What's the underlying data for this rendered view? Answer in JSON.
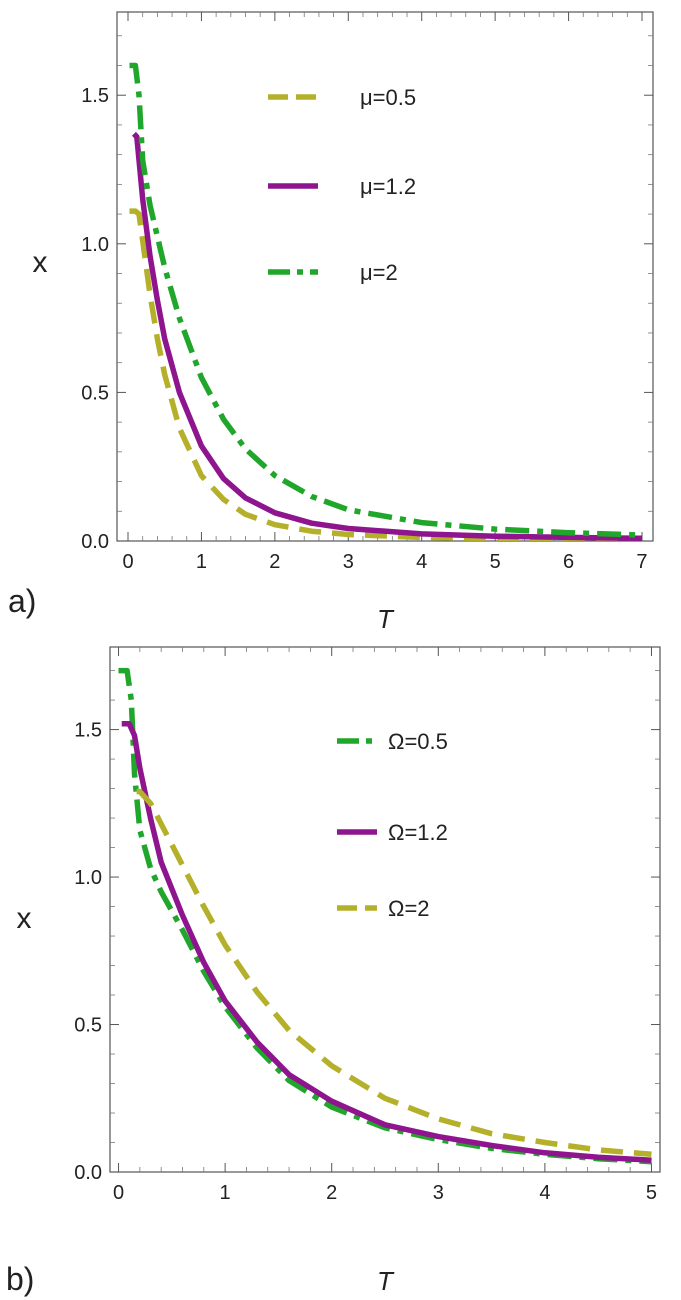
{
  "chart_data": [
    {
      "type": "line",
      "panel_label": "a)",
      "xlabel": "T",
      "ylabel": "x",
      "xlim": [
        -0.15,
        7.15
      ],
      "ylim": [
        0.0,
        1.78
      ],
      "xticks": [
        "0",
        "1",
        "2",
        "3",
        "4",
        "5",
        "6",
        "7"
      ],
      "yticks": [
        "0.0",
        "0.5",
        "1.0",
        "1.5"
      ],
      "grid": false,
      "legend_position": "top-right",
      "series": [
        {
          "name": "μ=0.5",
          "color": "#B5B02A",
          "style": "dashed",
          "points": [
            [
              0.02,
              1.11
            ],
            [
              0.1,
              1.11
            ],
            [
              0.15,
              1.1
            ],
            [
              0.2,
              1.01
            ],
            [
              0.3,
              0.83
            ],
            [
              0.4,
              0.68
            ],
            [
              0.5,
              0.56
            ],
            [
              0.7,
              0.38
            ],
            [
              1.0,
              0.22
            ],
            [
              1.3,
              0.14
            ],
            [
              1.6,
              0.09
            ],
            [
              2.0,
              0.055
            ],
            [
              2.5,
              0.033
            ],
            [
              3.0,
              0.022
            ],
            [
              4.0,
              0.012
            ],
            [
              5.0,
              0.008
            ],
            [
              6.0,
              0.006
            ],
            [
              7.0,
              0.004
            ]
          ]
        },
        {
          "name": "μ=1.2",
          "color": "#8E158E",
          "style": "solid",
          "points": [
            [
              0.08,
              1.37
            ],
            [
              0.12,
              1.36
            ],
            [
              0.2,
              1.15
            ],
            [
              0.3,
              0.96
            ],
            [
              0.4,
              0.81
            ],
            [
              0.5,
              0.68
            ],
            [
              0.7,
              0.5
            ],
            [
              1.0,
              0.32
            ],
            [
              1.3,
              0.21
            ],
            [
              1.6,
              0.145
            ],
            [
              2.0,
              0.095
            ],
            [
              2.5,
              0.06
            ],
            [
              3.0,
              0.042
            ],
            [
              4.0,
              0.024
            ],
            [
              5.0,
              0.016
            ],
            [
              6.0,
              0.012
            ],
            [
              7.0,
              0.009
            ]
          ]
        },
        {
          "name": "μ=2",
          "color": "#20A62A",
          "style": "dashdot",
          "points": [
            [
              0.02,
              1.6
            ],
            [
              0.1,
              1.6
            ],
            [
              0.15,
              1.5
            ],
            [
              0.2,
              1.28
            ],
            [
              0.3,
              1.13
            ],
            [
              0.5,
              0.92
            ],
            [
              0.7,
              0.75
            ],
            [
              1.0,
              0.55
            ],
            [
              1.3,
              0.41
            ],
            [
              1.6,
              0.31
            ],
            [
              2.0,
              0.22
            ],
            [
              2.5,
              0.15
            ],
            [
              3.0,
              0.105
            ],
            [
              4.0,
              0.062
            ],
            [
              5.0,
              0.04
            ],
            [
              6.0,
              0.028
            ],
            [
              7.0,
              0.02
            ]
          ]
        }
      ]
    },
    {
      "type": "line",
      "panel_label": "b)",
      "xlabel": "T",
      "ylabel": "x",
      "xlim": [
        -0.08,
        5.08
      ],
      "ylim": [
        0.0,
        1.78
      ],
      "xticks": [
        "0",
        "1",
        "2",
        "3",
        "4",
        "5"
      ],
      "yticks": [
        "0.0",
        "0.5",
        "1.0",
        "1.5"
      ],
      "grid": false,
      "legend_position": "top-right",
      "series": [
        {
          "name": "Ω=0.5",
          "color": "#20A62A",
          "style": "dashdot",
          "points": [
            [
              0.0,
              1.7
            ],
            [
              0.08,
              1.7
            ],
            [
              0.12,
              1.6
            ],
            [
              0.15,
              1.35
            ],
            [
              0.2,
              1.16
            ],
            [
              0.3,
              1.03
            ],
            [
              0.4,
              0.95
            ],
            [
              0.6,
              0.82
            ],
            [
              0.8,
              0.68
            ],
            [
              1.0,
              0.56
            ],
            [
              1.3,
              0.42
            ],
            [
              1.6,
              0.31
            ],
            [
              2.0,
              0.22
            ],
            [
              2.5,
              0.15
            ],
            [
              3.0,
              0.11
            ],
            [
              3.5,
              0.08
            ],
            [
              4.0,
              0.06
            ],
            [
              4.5,
              0.045
            ],
            [
              5.0,
              0.035
            ]
          ]
        },
        {
          "name": "Ω=1.2",
          "color": "#8E158E",
          "style": "solid",
          "points": [
            [
              0.03,
              1.52
            ],
            [
              0.1,
              1.52
            ],
            [
              0.15,
              1.48
            ],
            [
              0.2,
              1.37
            ],
            [
              0.3,
              1.2
            ],
            [
              0.4,
              1.05
            ],
            [
              0.6,
              0.87
            ],
            [
              0.8,
              0.71
            ],
            [
              1.0,
              0.58
            ],
            [
              1.3,
              0.44
            ],
            [
              1.6,
              0.33
            ],
            [
              2.0,
              0.24
            ],
            [
              2.5,
              0.16
            ],
            [
              3.0,
              0.12
            ],
            [
              3.5,
              0.09
            ],
            [
              4.0,
              0.065
            ],
            [
              4.5,
              0.05
            ],
            [
              5.0,
              0.04
            ]
          ]
        },
        {
          "name": "Ω=2",
          "color": "#B5B02A",
          "style": "dashed",
          "points": [
            [
              0.17,
              1.29
            ],
            [
              0.2,
              1.29
            ],
            [
              0.3,
              1.25
            ],
            [
              0.4,
              1.18
            ],
            [
              0.6,
              1.04
            ],
            [
              0.8,
              0.9
            ],
            [
              1.0,
              0.77
            ],
            [
              1.3,
              0.61
            ],
            [
              1.6,
              0.48
            ],
            [
              2.0,
              0.36
            ],
            [
              2.5,
              0.25
            ],
            [
              3.0,
              0.18
            ],
            [
              3.5,
              0.13
            ],
            [
              4.0,
              0.1
            ],
            [
              4.5,
              0.075
            ],
            [
              5.0,
              0.06
            ]
          ]
        }
      ]
    }
  ]
}
